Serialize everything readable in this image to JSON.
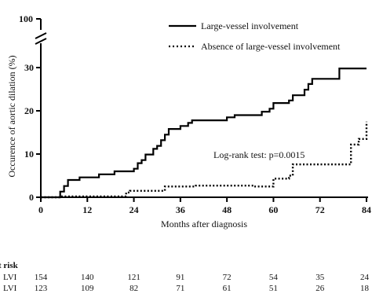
{
  "chart_data": {
    "type": "line",
    "xlabel": "Months after diagnosis",
    "ylabel": "Occurence of aortic dilation (%)",
    "x_ticks": [
      "0",
      "12",
      "24",
      "36",
      "48",
      "60",
      "72",
      "84"
    ],
    "y_ticks": [
      "0",
      "10",
      "20",
      "30"
    ],
    "y_break_label": "100",
    "xlim": [
      0,
      84
    ],
    "ylim": [
      0,
      30
    ],
    "grid": false,
    "legend_position": "top-right",
    "annotation": "Log-rank test: p=0.0015",
    "series": [
      {
        "name": "Large-vessel involvement",
        "style": "solid",
        "points": [
          [
            0,
            0
          ],
          [
            5,
            0
          ],
          [
            5,
            1.3
          ],
          [
            6,
            1.3
          ],
          [
            6,
            2.6
          ],
          [
            7,
            2.6
          ],
          [
            7,
            4
          ],
          [
            10,
            4
          ],
          [
            10,
            4.6
          ],
          [
            15,
            4.6
          ],
          [
            15,
            5.3
          ],
          [
            19,
            5.3
          ],
          [
            19,
            6
          ],
          [
            24,
            6
          ],
          [
            24,
            6.6
          ],
          [
            25,
            6.6
          ],
          [
            25,
            7.9
          ],
          [
            26,
            7.9
          ],
          [
            26,
            8.6
          ],
          [
            27,
            8.6
          ],
          [
            27,
            9.9
          ],
          [
            29,
            9.9
          ],
          [
            29,
            11.2
          ],
          [
            30,
            11.2
          ],
          [
            30,
            11.9
          ],
          [
            31,
            11.9
          ],
          [
            31,
            13.2
          ],
          [
            32,
            13.2
          ],
          [
            32,
            14.5
          ],
          [
            33,
            14.5
          ],
          [
            33,
            15.8
          ],
          [
            36,
            15.8
          ],
          [
            36,
            16.5
          ],
          [
            38,
            16.5
          ],
          [
            38,
            17.2
          ],
          [
            39,
            17.2
          ],
          [
            39,
            17.8
          ],
          [
            48,
            17.8
          ],
          [
            48,
            18.5
          ],
          [
            50,
            18.5
          ],
          [
            50,
            19
          ],
          [
            57,
            19
          ],
          [
            57,
            19.8
          ],
          [
            59,
            19.8
          ],
          [
            59,
            20.5
          ],
          [
            60,
            20.5
          ],
          [
            60,
            21.8
          ],
          [
            64,
            21.8
          ],
          [
            64,
            22.4
          ],
          [
            65,
            22.4
          ],
          [
            65,
            23.6
          ],
          [
            68,
            23.6
          ],
          [
            68,
            24.9
          ],
          [
            69,
            24.9
          ],
          [
            69,
            26.2
          ],
          [
            70,
            26.2
          ],
          [
            70,
            27.4
          ],
          [
            77,
            27.4
          ],
          [
            77,
            29.8
          ],
          [
            84,
            29.8
          ]
        ]
      },
      {
        "name": "Absence of large-vessel involvement",
        "style": "dotted",
        "points": [
          [
            0,
            0
          ],
          [
            5,
            0
          ],
          [
            5,
            0.2
          ],
          [
            22,
            0.2
          ],
          [
            22,
            1.1
          ],
          [
            23,
            1.1
          ],
          [
            23,
            1.5
          ],
          [
            32,
            1.5
          ],
          [
            32,
            2.5
          ],
          [
            40,
            2.5
          ],
          [
            40,
            2.7
          ],
          [
            55,
            2.7
          ],
          [
            55,
            2.5
          ],
          [
            60,
            2.5
          ],
          [
            60,
            4.3
          ],
          [
            64,
            4.3
          ],
          [
            64,
            5
          ],
          [
            65,
            5
          ],
          [
            65,
            7.6
          ],
          [
            80,
            7.6
          ],
          [
            80,
            12.2
          ],
          [
            82,
            12.2
          ],
          [
            82,
            13.5
          ],
          [
            84,
            13.5
          ],
          [
            84,
            17.5
          ]
        ]
      }
    ],
    "risk_table": {
      "title": "t risk",
      "x": [
        0,
        12,
        24,
        36,
        48,
        60,
        72,
        84
      ],
      "rows": [
        {
          "label": "LVI",
          "counts": [
            "154",
            "140",
            "121",
            "91",
            "72",
            "54",
            "35",
            "24"
          ]
        },
        {
          "label": "LVI",
          "counts": [
            "123",
            "109",
            "82",
            "71",
            "61",
            "51",
            "26",
            "18"
          ]
        }
      ]
    }
  }
}
